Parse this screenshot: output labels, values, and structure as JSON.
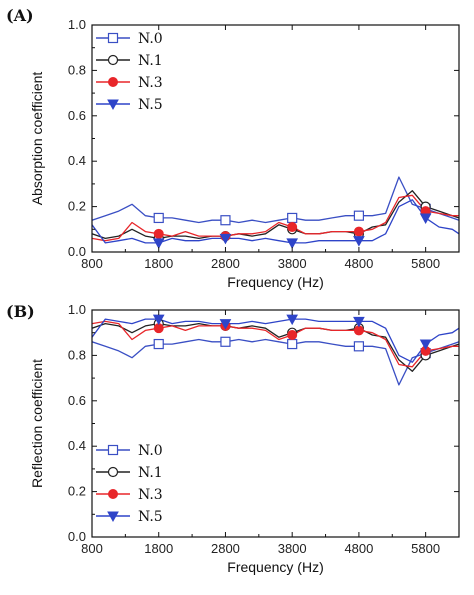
{
  "chart_data": [
    {
      "panel": "(A)",
      "type": "line",
      "xlabel": "Frequency (Hz)",
      "ylabel": "Absorption coefficient",
      "xlim": [
        800,
        6300
      ],
      "ylim": [
        0.0,
        1.0
      ],
      "xticks": [
        "800",
        "1800",
        "2800",
        "3800",
        "4800",
        "5800"
      ],
      "yticks": [
        "0.0",
        "0.2",
        "0.4",
        "0.6",
        "0.8",
        "1.0"
      ],
      "legend_position": "top-left",
      "x": [
        800,
        1000,
        1200,
        1400,
        1600,
        1800,
        2000,
        2200,
        2400,
        2600,
        2800,
        3000,
        3200,
        3400,
        3600,
        3800,
        4000,
        4200,
        4400,
        4600,
        4800,
        5000,
        5200,
        5400,
        5600,
        5800,
        6000,
        6200,
        6300
      ],
      "series": [
        {
          "name": "N.0",
          "color": "#3a4fc4",
          "marker": "square-open",
          "values": [
            0.14,
            0.16,
            0.18,
            0.21,
            0.16,
            0.15,
            0.15,
            0.14,
            0.13,
            0.14,
            0.14,
            0.13,
            0.14,
            0.13,
            0.14,
            0.15,
            0.14,
            0.14,
            0.15,
            0.16,
            0.16,
            0.16,
            0.17,
            0.33,
            0.21,
            0.19,
            0.17,
            0.15,
            0.14
          ]
        },
        {
          "name": "N.1",
          "color": "#222222",
          "marker": "circle-open",
          "values": [
            0.08,
            0.06,
            0.07,
            0.1,
            0.07,
            0.06,
            0.07,
            0.07,
            0.06,
            0.07,
            0.07,
            0.08,
            0.07,
            0.08,
            0.12,
            0.1,
            0.08,
            0.08,
            0.09,
            0.09,
            0.08,
            0.11,
            0.12,
            0.22,
            0.27,
            0.2,
            0.18,
            0.16,
            0.15
          ]
        },
        {
          "name": "N.3",
          "color": "#e8262a",
          "marker": "circle-filled",
          "values": [
            0.06,
            0.05,
            0.06,
            0.13,
            0.09,
            0.08,
            0.07,
            0.09,
            0.07,
            0.07,
            0.07,
            0.08,
            0.08,
            0.09,
            0.13,
            0.11,
            0.08,
            0.08,
            0.09,
            0.09,
            0.09,
            0.1,
            0.13,
            0.24,
            0.25,
            0.18,
            0.17,
            0.16,
            0.16
          ]
        },
        {
          "name": "N.5",
          "color": "#2e44c8",
          "marker": "triangle-down-filled",
          "values": [
            0.12,
            0.04,
            0.05,
            0.06,
            0.04,
            0.04,
            0.06,
            0.05,
            0.05,
            0.06,
            0.06,
            0.06,
            0.05,
            0.06,
            0.05,
            0.04,
            0.04,
            0.05,
            0.05,
            0.05,
            0.05,
            0.05,
            0.08,
            0.2,
            0.23,
            0.15,
            0.11,
            0.1,
            0.08
          ]
        }
      ]
    },
    {
      "panel": "(B)",
      "type": "line",
      "xlabel": "Frequency (Hz)",
      "ylabel": "Reflection coefficient",
      "xlim": [
        800,
        6300
      ],
      "ylim": [
        0.0,
        1.0
      ],
      "xticks": [
        "800",
        "1800",
        "2800",
        "3800",
        "4800",
        "5800"
      ],
      "yticks": [
        "0.0",
        "0.2",
        "0.4",
        "0.6",
        "0.8",
        "1.0"
      ],
      "legend_position": "bottom-left",
      "x": [
        800,
        1000,
        1200,
        1400,
        1600,
        1800,
        2000,
        2200,
        2400,
        2600,
        2800,
        3000,
        3200,
        3400,
        3600,
        3800,
        4000,
        4200,
        4400,
        4600,
        4800,
        5000,
        5200,
        5400,
        5600,
        5800,
        6000,
        6200,
        6300
      ],
      "series": [
        {
          "name": "N.0",
          "color": "#3a4fc4",
          "marker": "square-open",
          "values": [
            0.86,
            0.84,
            0.82,
            0.79,
            0.84,
            0.85,
            0.85,
            0.86,
            0.87,
            0.86,
            0.86,
            0.87,
            0.86,
            0.87,
            0.86,
            0.85,
            0.86,
            0.86,
            0.85,
            0.84,
            0.84,
            0.84,
            0.83,
            0.67,
            0.79,
            0.81,
            0.83,
            0.85,
            0.86
          ]
        },
        {
          "name": "N.1",
          "color": "#222222",
          "marker": "circle-open",
          "values": [
            0.92,
            0.94,
            0.93,
            0.9,
            0.93,
            0.94,
            0.93,
            0.93,
            0.94,
            0.93,
            0.93,
            0.92,
            0.93,
            0.92,
            0.88,
            0.9,
            0.92,
            0.92,
            0.91,
            0.91,
            0.92,
            0.89,
            0.88,
            0.78,
            0.73,
            0.8,
            0.82,
            0.84,
            0.85
          ]
        },
        {
          "name": "N.3",
          "color": "#e8262a",
          "marker": "circle-filled",
          "values": [
            0.94,
            0.95,
            0.94,
            0.87,
            0.91,
            0.92,
            0.93,
            0.91,
            0.93,
            0.93,
            0.93,
            0.92,
            0.92,
            0.91,
            0.87,
            0.89,
            0.92,
            0.92,
            0.91,
            0.91,
            0.91,
            0.9,
            0.87,
            0.76,
            0.75,
            0.82,
            0.83,
            0.84,
            0.84
          ]
        },
        {
          "name": "N.5",
          "color": "#2e44c8",
          "marker": "triangle-down-filled",
          "values": [
            0.88,
            0.96,
            0.95,
            0.94,
            0.96,
            0.96,
            0.94,
            0.95,
            0.95,
            0.94,
            0.94,
            0.94,
            0.95,
            0.94,
            0.95,
            0.96,
            0.96,
            0.95,
            0.95,
            0.95,
            0.95,
            0.95,
            0.92,
            0.8,
            0.77,
            0.85,
            0.89,
            0.9,
            0.92
          ]
        }
      ]
    }
  ]
}
